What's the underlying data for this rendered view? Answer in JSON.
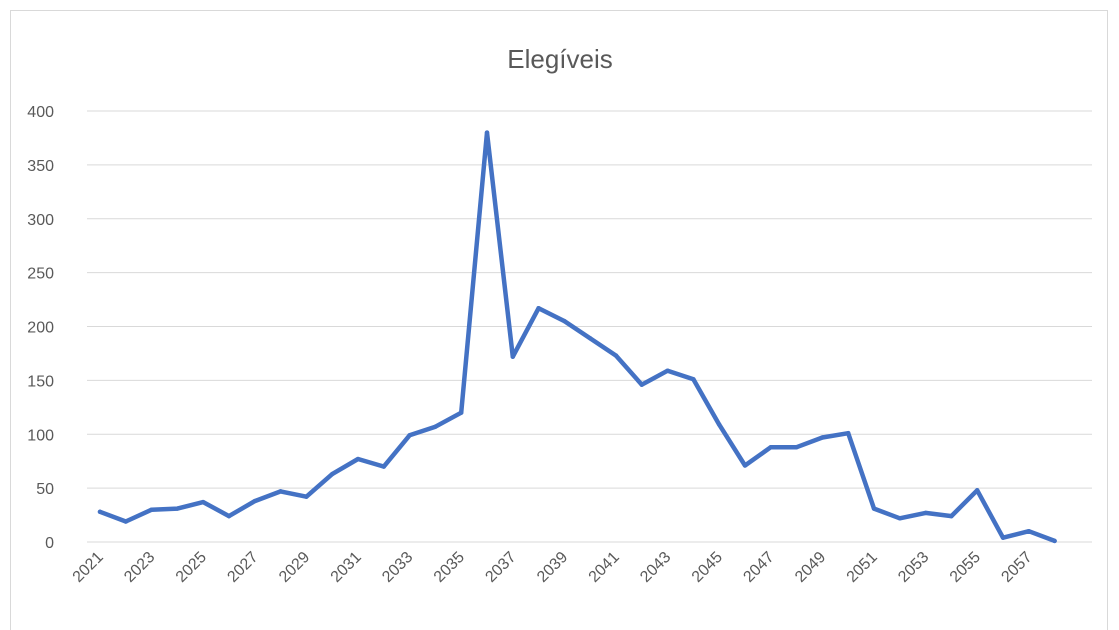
{
  "chart_data": {
    "type": "line",
    "title": "Elegíveis",
    "xlabel": "",
    "ylabel": "",
    "ylim": [
      0,
      400
    ],
    "yticks": [
      0,
      50,
      100,
      150,
      200,
      250,
      300,
      350,
      400
    ],
    "grid": true,
    "legend": "none",
    "x": [
      2021,
      2022,
      2023,
      2024,
      2025,
      2026,
      2027,
      2028,
      2029,
      2030,
      2031,
      2032,
      2033,
      2034,
      2035,
      2036,
      2037,
      2038,
      2039,
      2040,
      2041,
      2042,
      2043,
      2044,
      2045,
      2046,
      2047,
      2048,
      2049,
      2050,
      2051,
      2052,
      2053,
      2054,
      2055,
      2056,
      2057,
      2058
    ],
    "xtick_labels": [
      "2021",
      "2023",
      "2025",
      "2027",
      "2029",
      "2031",
      "2033",
      "2035",
      "2037",
      "2039",
      "2041",
      "2043",
      "2045",
      "2047",
      "2049",
      "2051",
      "2053",
      "2055",
      "2057"
    ],
    "series": [
      {
        "values": [
          28,
          19,
          30,
          31,
          37,
          24,
          38,
          47,
          42,
          63,
          77,
          70,
          99,
          107,
          120,
          380,
          172,
          217,
          205,
          189,
          173,
          146,
          159,
          151,
          109,
          71,
          88,
          88,
          97,
          101,
          31,
          22,
          27,
          24,
          48,
          4,
          10,
          1
        ],
        "color": "#4472c4"
      }
    ]
  }
}
